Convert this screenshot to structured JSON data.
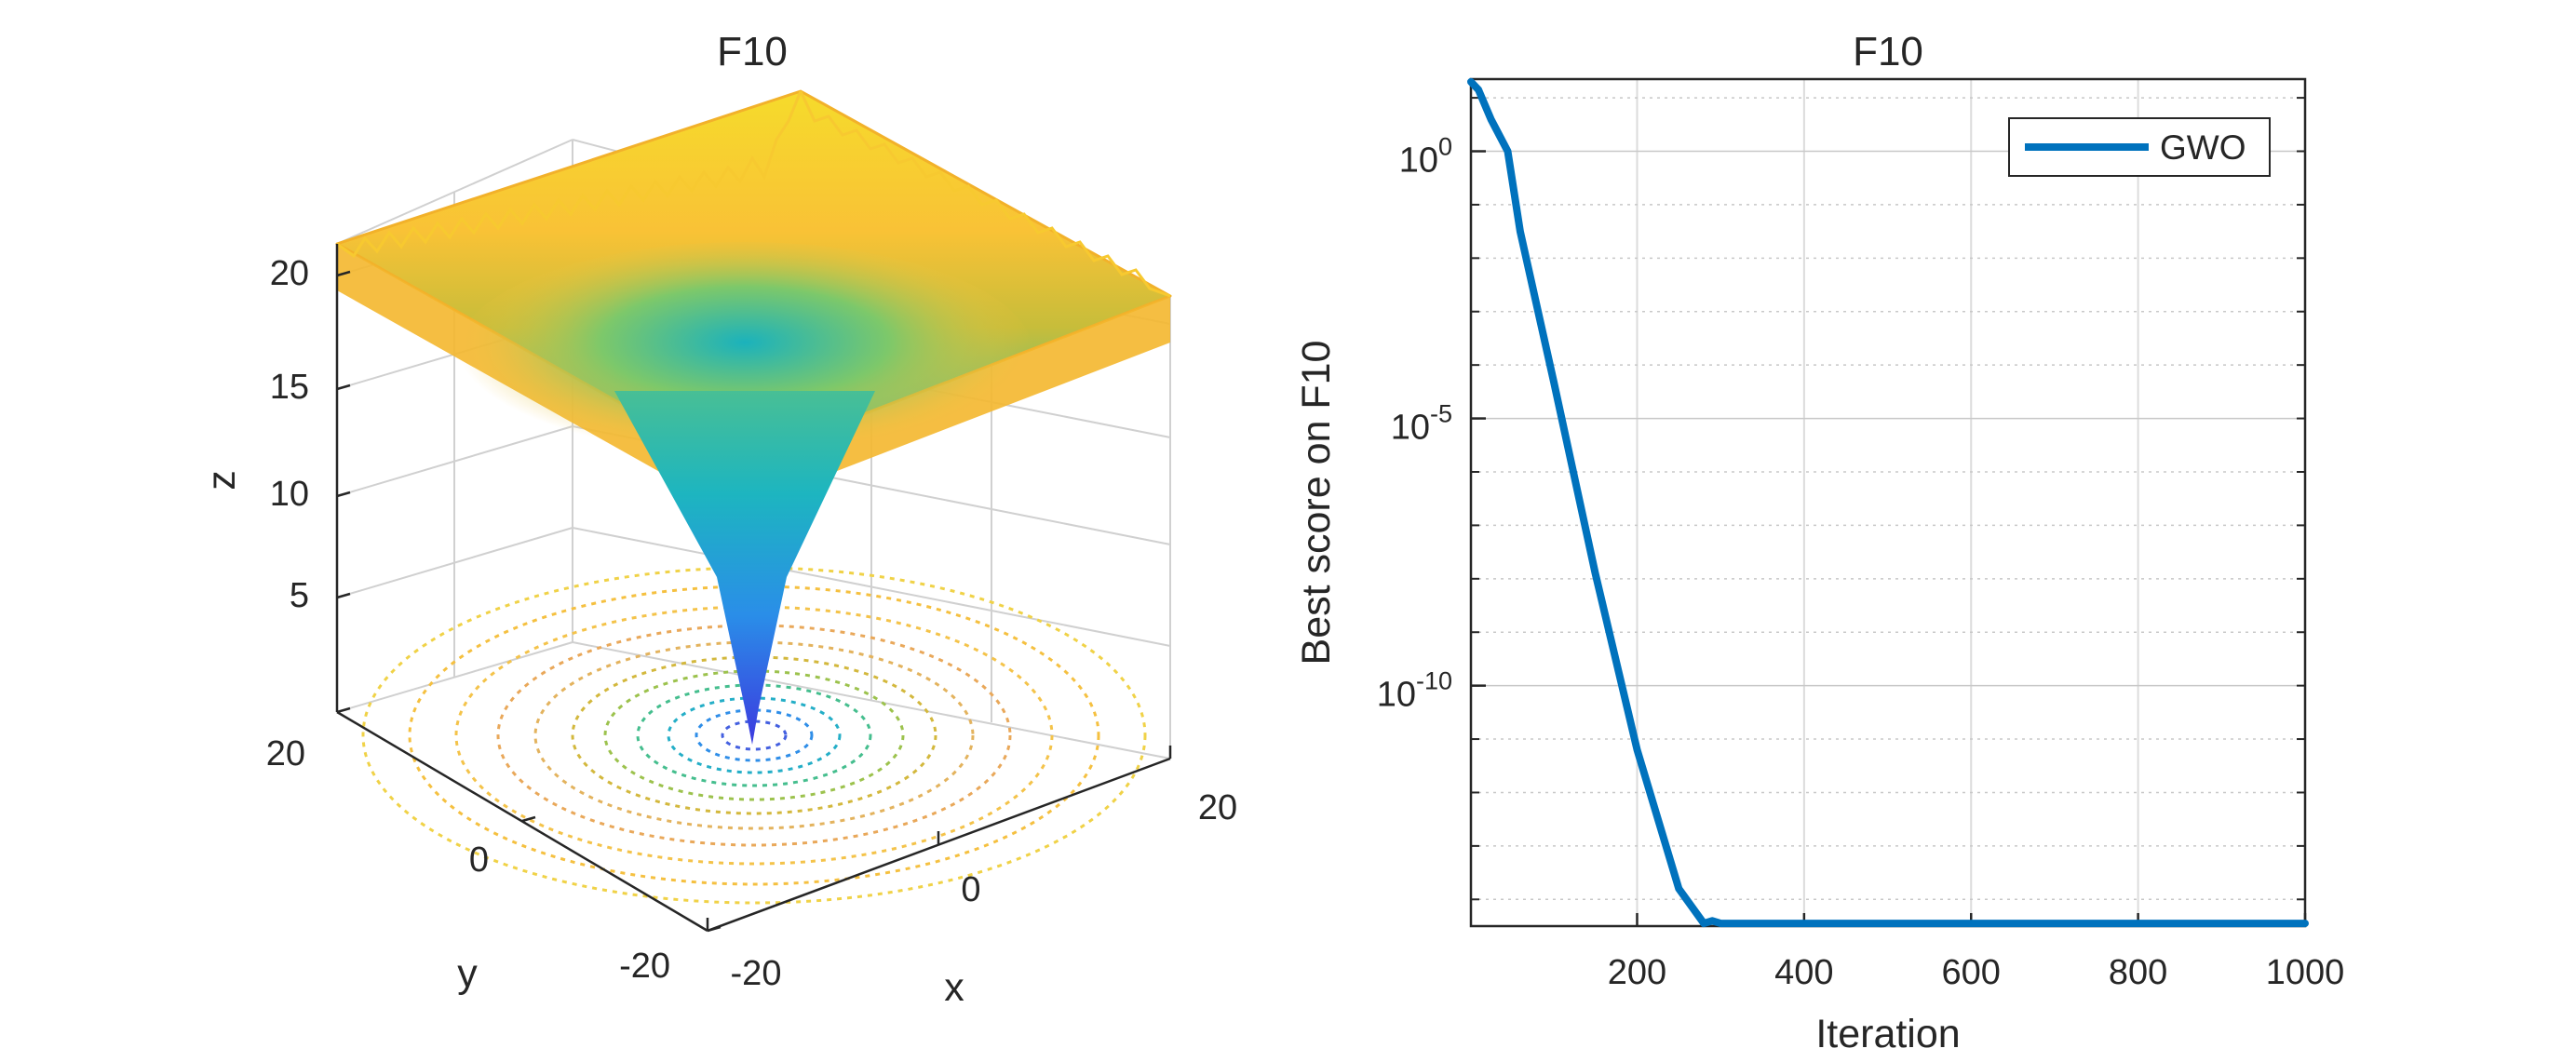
{
  "chart_data": [
    {
      "type": "surface",
      "title": "F10",
      "xlabel": "x",
      "ylabel": "y",
      "zlabel": "z",
      "xlim": [
        -20,
        20
      ],
      "ylim": [
        -20,
        20
      ],
      "zlim": [
        0,
        22
      ],
      "x_ticks": [
        "-20",
        "0",
        "20"
      ],
      "y_ticks": [
        "-20",
        "0",
        "20"
      ],
      "z_ticks": [
        "5",
        "10",
        "15",
        "20"
      ],
      "contour_below": true,
      "colormap": "parula",
      "grid": true
    },
    {
      "type": "line",
      "title": "F10",
      "xlabel": "Iteration",
      "ylabel": "Best score on F10",
      "xlim": [
        1,
        1000
      ],
      "yscale": "log",
      "ylim_exp": [
        -14.5,
        1.35
      ],
      "x_ticks": [
        "200",
        "400",
        "600",
        "800",
        "1000"
      ],
      "y_ticks": [
        {
          "base": "10",
          "exp": "0",
          "value": 0
        },
        {
          "base": "10",
          "exp": "-5",
          "value": -5
        },
        {
          "base": "10",
          "exp": "-10",
          "value": -10
        }
      ],
      "grid": true,
      "legend_position": "top-right",
      "series": [
        {
          "name": "GWO",
          "color": "#0072BD",
          "x": [
            1,
            10,
            25,
            45,
            60,
            100,
            150,
            200,
            250,
            280,
            290,
            300,
            400,
            600,
            800,
            1000
          ],
          "log10y": [
            1.3,
            1.15,
            0.6,
            0.0,
            -1.5,
            -4.3,
            -7.9,
            -11.2,
            -13.8,
            -14.45,
            -14.4,
            -14.45,
            -14.45,
            -14.45,
            -14.45,
            -14.45
          ]
        }
      ]
    }
  ]
}
